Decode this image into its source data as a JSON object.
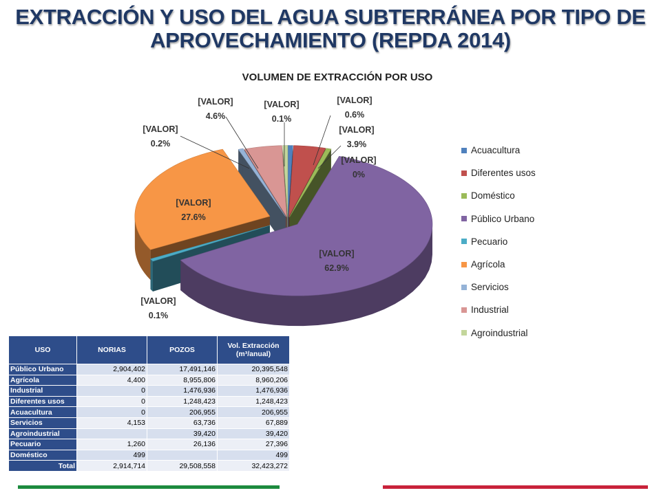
{
  "title": {
    "line1": "EXTRACCIÓN Y USO DEL AGUA SUBTERRÁNEA POR TIPO DE",
    "line2": "APROVECHAMIENTO (REPDA 2014)"
  },
  "chart_data": {
    "type": "pie",
    "title": "VOLUMEN DE EXTRACCIÓN POR USO",
    "legend_position": "right",
    "slices": [
      {
        "name": "Acuacultura",
        "percent": 0.6,
        "value_label": "[VALOR]",
        "percent_label": "0.6%",
        "color": "#4f81bd"
      },
      {
        "name": "Diferentes usos",
        "percent": 3.9,
        "value_label": "[VALOR]",
        "percent_label": "3.9%",
        "color": "#c0504d"
      },
      {
        "name": "Doméstico",
        "percent": 0.0,
        "value_label": "[VALOR]",
        "percent_label": "0%",
        "color": "#9bbb59"
      },
      {
        "name": "Público Urbano",
        "percent": 62.9,
        "value_label": "[VALOR]",
        "percent_label": "62.9%",
        "color": "#8064a2"
      },
      {
        "name": "Pecuario",
        "percent": 0.1,
        "value_label": "[VALOR]",
        "percent_label": "0.1%",
        "color": "#4bacc6"
      },
      {
        "name": "Agrícola",
        "percent": 27.6,
        "value_label": "[VALOR]",
        "percent_label": "27.6%",
        "color": "#f79646"
      },
      {
        "name": "Servicios",
        "percent": 0.2,
        "value_label": "[VALOR]",
        "percent_label": "0.2%",
        "color": "#95b3d7"
      },
      {
        "name": "Industrial",
        "percent": 4.6,
        "value_label": "[VALOR]",
        "percent_label": "4.6%",
        "color": "#d99694"
      },
      {
        "name": "Agroindustrial",
        "percent": 0.1,
        "value_label": "[VALOR]",
        "percent_label": "0.1%",
        "color": "#c3d69b"
      }
    ]
  },
  "table": {
    "headers": [
      "USO",
      "NORIAS",
      "POZOS",
      "Vol. Extracción (m³/anual)"
    ],
    "rows": [
      [
        "Público Urbano",
        "2,904,402",
        "17,491,146",
        "20,395,548"
      ],
      [
        "Agrícola",
        "4,400",
        "8,955,806",
        "8,960,206"
      ],
      [
        "Industrial",
        "0",
        "1,476,936",
        "1,476,936"
      ],
      [
        "Diferentes usos",
        "0",
        "1,248,423",
        "1,248,423"
      ],
      [
        "Acuacultura",
        "0",
        "206,955",
        "206,955"
      ],
      [
        "Servicios",
        "4,153",
        "63,736",
        "67,889"
      ],
      [
        "Agroindustrial",
        "",
        "39,420",
        "39,420"
      ],
      [
        "Pecuario",
        "1,260",
        "26,136",
        "27,396"
      ],
      [
        "Doméstico",
        "499",
        "",
        "499"
      ],
      [
        "Total",
        "2,914,714",
        "29,508,558",
        "32,423,272"
      ]
    ]
  },
  "colors": {
    "title": "#1f3864",
    "table_header": "#2e4d8a",
    "row_odd": "#d7dfee",
    "row_even": "#eceff6",
    "bar_green": "#1c8a3e",
    "bar_red": "#c8223a"
  }
}
